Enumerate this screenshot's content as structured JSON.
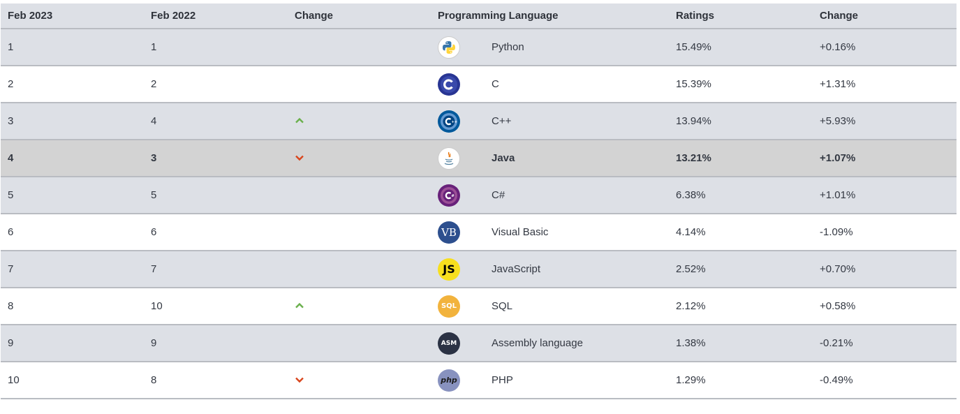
{
  "headers": [
    "Feb 2023",
    "Feb 2022",
    "Change",
    "Programming Language",
    "",
    "Ratings",
    "Change"
  ],
  "colors": {
    "up": "#6ab04c",
    "down": "#d9461d",
    "row_alt": "#dde0e6",
    "row_highlight": "#d3d3d3"
  },
  "rows": [
    {
      "rank": "1",
      "prev": "1",
      "change": "none",
      "icon": "python-logo-icon",
      "language": "Python",
      "rating": "15.49%",
      "delta": "+0.16%"
    },
    {
      "rank": "2",
      "prev": "2",
      "change": "none",
      "icon": "c-logo-icon",
      "language": "C",
      "rating": "15.39%",
      "delta": "+1.31%"
    },
    {
      "rank": "3",
      "prev": "4",
      "change": "up",
      "icon": "cpp-logo-icon",
      "language": "C++",
      "rating": "13.94%",
      "delta": "+5.93%"
    },
    {
      "rank": "4",
      "prev": "3",
      "change": "down",
      "icon": "java-logo-icon",
      "language": "Java",
      "rating": "13.21%",
      "delta": "+1.07%"
    },
    {
      "rank": "5",
      "prev": "5",
      "change": "none",
      "icon": "csharp-logo-icon",
      "language": "C#",
      "rating": "6.38%",
      "delta": "+1.01%"
    },
    {
      "rank": "6",
      "prev": "6",
      "change": "none",
      "icon": "vb-logo-icon",
      "icon_text": "VB",
      "language": "Visual Basic",
      "rating": "4.14%",
      "delta": "-1.09%"
    },
    {
      "rank": "7",
      "prev": "7",
      "change": "none",
      "icon": "js-logo-icon",
      "icon_text": "JS",
      "language": "JavaScript",
      "rating": "2.52%",
      "delta": "+0.70%"
    },
    {
      "rank": "8",
      "prev": "10",
      "change": "up",
      "icon": "sql-logo-icon",
      "icon_text": "SQL",
      "language": "SQL",
      "rating": "2.12%",
      "delta": "+0.58%"
    },
    {
      "rank": "9",
      "prev": "9",
      "change": "none",
      "icon": "asm-logo-icon",
      "icon_text": "ASM",
      "language": "Assembly language",
      "rating": "1.38%",
      "delta": "-0.21%"
    },
    {
      "rank": "10",
      "prev": "8",
      "change": "down",
      "icon": "php-logo-icon",
      "icon_text": "php",
      "language": "PHP",
      "rating": "1.29%",
      "delta": "-0.49%"
    }
  ],
  "highlight_row": 3
}
